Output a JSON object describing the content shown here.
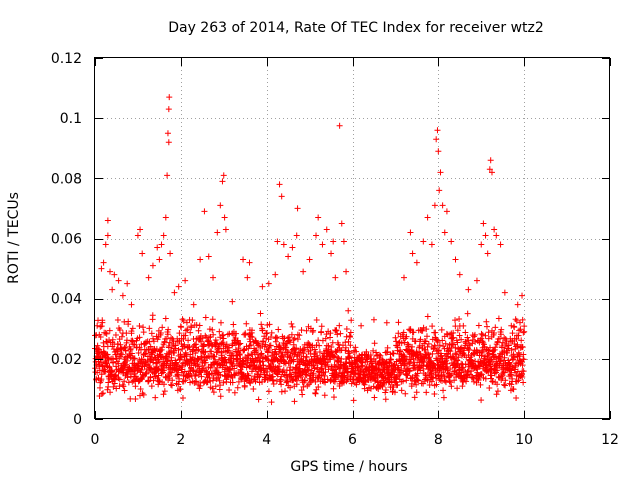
{
  "chart_data": {
    "type": "scatter",
    "title": "Day 263 of 2014, Rate Of TEC Index for receiver wtz2",
    "xlabel": "GPS time / hours",
    "ylabel": "ROTI / TECUs",
    "xlim": [
      0,
      12
    ],
    "ylim": [
      0,
      0.12
    ],
    "xticks": [
      "0",
      "2",
      "4",
      "6",
      "8",
      "10",
      "12"
    ],
    "yticks": [
      "0",
      "0.02",
      "0.04",
      "0.06",
      "0.08",
      "0.1",
      "0.12"
    ],
    "grid": true,
    "marker": "+",
    "color": "#ff0000",
    "series": [
      {
        "name": "ROTI",
        "points": [
          [
            0.05,
            0.031
          ],
          [
            0.1,
            0.028
          ],
          [
            0.15,
            0.05
          ],
          [
            0.2,
            0.052
          ],
          [
            0.25,
            0.058
          ],
          [
            0.3,
            0.061
          ],
          [
            0.3,
            0.066
          ],
          [
            0.35,
            0.049
          ],
          [
            0.4,
            0.043
          ],
          [
            0.45,
            0.048
          ],
          [
            0.55,
            0.046
          ],
          [
            0.65,
            0.041
          ],
          [
            0.75,
            0.045
          ],
          [
            0.85,
            0.038
          ],
          [
            1.0,
            0.061
          ],
          [
            1.05,
            0.063
          ],
          [
            1.1,
            0.055
          ],
          [
            1.25,
            0.047
          ],
          [
            1.35,
            0.051
          ],
          [
            1.45,
            0.057
          ],
          [
            1.5,
            0.053
          ],
          [
            1.55,
            0.058
          ],
          [
            1.6,
            0.061
          ],
          [
            1.65,
            0.067
          ],
          [
            1.68,
            0.081
          ],
          [
            1.7,
            0.095
          ],
          [
            1.72,
            0.092
          ],
          [
            1.72,
            0.103
          ],
          [
            1.73,
            0.107
          ],
          [
            1.75,
            0.055
          ],
          [
            1.85,
            0.042
          ],
          [
            1.95,
            0.044
          ],
          [
            2.1,
            0.046
          ],
          [
            2.3,
            0.038
          ],
          [
            2.45,
            0.053
          ],
          [
            2.55,
            0.069
          ],
          [
            2.65,
            0.054
          ],
          [
            2.75,
            0.047
          ],
          [
            2.85,
            0.062
          ],
          [
            2.92,
            0.071
          ],
          [
            2.97,
            0.079
          ],
          [
            3.0,
            0.081
          ],
          [
            3.02,
            0.067
          ],
          [
            3.05,
            0.063
          ],
          [
            3.2,
            0.039
          ],
          [
            3.45,
            0.053
          ],
          [
            3.55,
            0.047
          ],
          [
            3.6,
            0.052
          ],
          [
            3.9,
            0.044
          ],
          [
            4.05,
            0.045
          ],
          [
            4.2,
            0.048
          ],
          [
            4.25,
            0.059
          ],
          [
            4.3,
            0.078
          ],
          [
            4.35,
            0.074
          ],
          [
            4.4,
            0.058
          ],
          [
            4.5,
            0.054
          ],
          [
            4.6,
            0.057
          ],
          [
            4.7,
            0.061
          ],
          [
            4.72,
            0.07
          ],
          [
            4.85,
            0.049
          ],
          [
            5.0,
            0.053
          ],
          [
            5.15,
            0.061
          ],
          [
            5.2,
            0.067
          ],
          [
            5.3,
            0.058
          ],
          [
            5.4,
            0.063
          ],
          [
            5.5,
            0.055
          ],
          [
            5.55,
            0.059
          ],
          [
            5.6,
            0.047
          ],
          [
            5.7,
            0.0975
          ],
          [
            5.75,
            0.065
          ],
          [
            5.8,
            0.059
          ],
          [
            5.85,
            0.049
          ],
          [
            5.9,
            0.036
          ],
          [
            6.2,
            0.031
          ],
          [
            6.5,
            0.033
          ],
          [
            6.8,
            0.032
          ],
          [
            7.0,
            0.027
          ],
          [
            7.2,
            0.047
          ],
          [
            7.35,
            0.062
          ],
          [
            7.4,
            0.055
          ],
          [
            7.5,
            0.052
          ],
          [
            7.65,
            0.059
          ],
          [
            7.75,
            0.067
          ],
          [
            7.85,
            0.058
          ],
          [
            7.92,
            0.071
          ],
          [
            7.95,
            0.093
          ],
          [
            7.98,
            0.096
          ],
          [
            8.0,
            0.089
          ],
          [
            8.02,
            0.076
          ],
          [
            8.05,
            0.082
          ],
          [
            8.1,
            0.071
          ],
          [
            8.15,
            0.062
          ],
          [
            8.2,
            0.069
          ],
          [
            8.3,
            0.059
          ],
          [
            8.4,
            0.053
          ],
          [
            8.5,
            0.048
          ],
          [
            8.7,
            0.043
          ],
          [
            8.9,
            0.046
          ],
          [
            9.0,
            0.058
          ],
          [
            9.05,
            0.065
          ],
          [
            9.1,
            0.061
          ],
          [
            9.15,
            0.055
          ],
          [
            9.2,
            0.083
          ],
          [
            9.22,
            0.086
          ],
          [
            9.25,
            0.082
          ],
          [
            9.3,
            0.063
          ],
          [
            9.35,
            0.061
          ],
          [
            9.45,
            0.058
          ],
          [
            9.55,
            0.042
          ],
          [
            9.7,
            0.031
          ],
          [
            9.85,
            0.038
          ],
          [
            9.95,
            0.041
          ],
          [
            10.0,
            0.029
          ]
        ],
        "dense_band": {
          "x_range": [
            0,
            10
          ],
          "y_range": [
            0.004,
            0.037
          ],
          "typical": 0.016
        }
      }
    ]
  }
}
